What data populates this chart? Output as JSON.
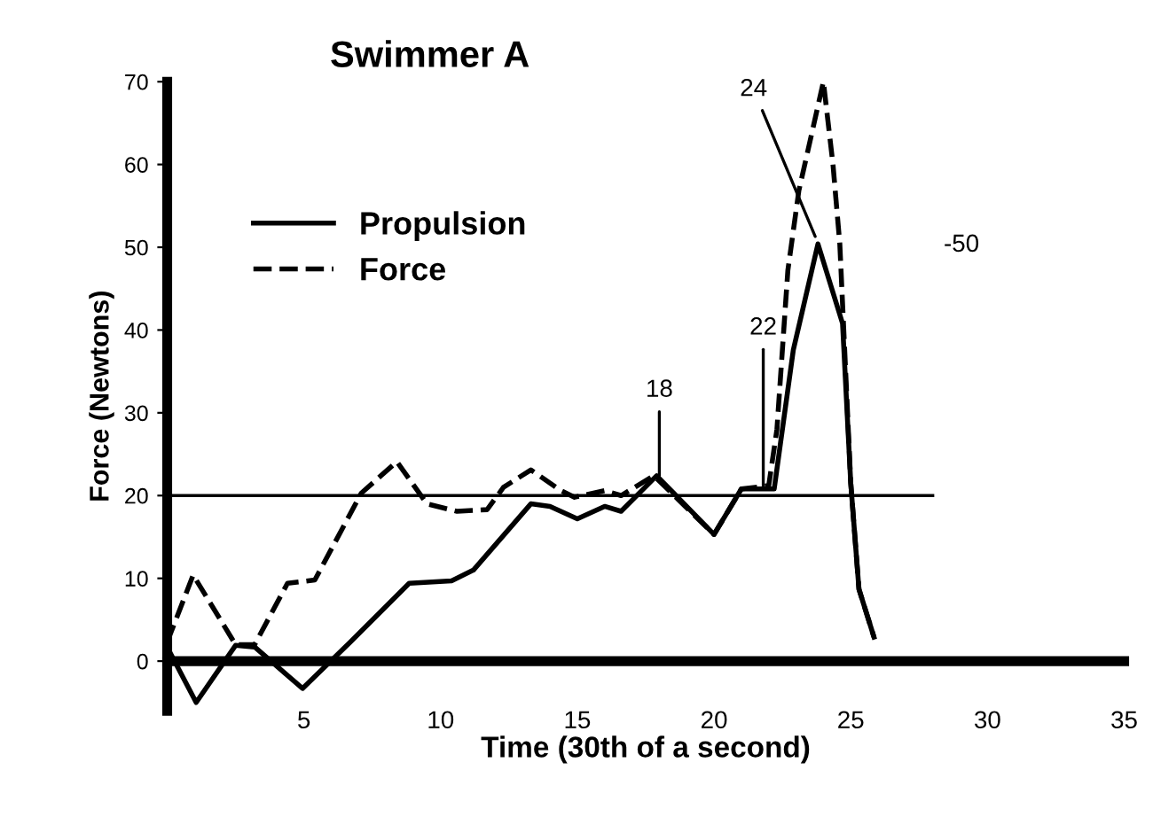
{
  "chart_data": {
    "type": "line",
    "title": "Swimmer A",
    "xlabel": "Time (30th of a second)",
    "ylabel": "Force (Newtons)",
    "xlim": [
      0,
      35
    ],
    "ylim": [
      -6,
      70
    ],
    "xticks": [
      5,
      10,
      15,
      20,
      25,
      30,
      35
    ],
    "yticks": [
      0,
      10,
      20,
      30,
      40,
      50,
      60,
      70
    ],
    "grid": false,
    "legend": "top left",
    "series": [
      {
        "name": "Propulsion",
        "color": "#000000",
        "line_style": "solid",
        "x": [
          0,
          1.06,
          2.5,
          3.2,
          4.95,
          6.7,
          8.85,
          10.4,
          11.2,
          13.3,
          14.0,
          15.0,
          16.0,
          16.6,
          17.9,
          20.0,
          21.0,
          22.2,
          22.9,
          23.8,
          24.7,
          25.0,
          25.3,
          25.85
        ],
        "values": [
          1.7,
          -5,
          1.9,
          1.7,
          -3.3,
          2.3,
          9.4,
          9.7,
          11,
          19,
          18.7,
          17.2,
          18.7,
          18.1,
          22.4,
          15.3,
          20.8,
          20.8,
          37.6,
          50.4,
          40.8,
          21.5,
          8.7,
          2.9
        ]
      },
      {
        "name": "Force",
        "color": "#000000",
        "line_style": "dashed",
        "x": [
          0,
          0.95,
          2.5,
          3.2,
          4.4,
          5.4,
          7.1,
          8.4,
          9.5,
          10.6,
          11.7,
          12.3,
          13.3,
          14.4,
          14.9,
          16.0,
          16.6,
          17.8,
          20.0,
          21.0,
          22.0,
          22.3,
          22.7,
          23.1,
          24.0,
          24.35,
          24.6,
          25.0,
          25.3,
          25.85
        ],
        "values": [
          2.3,
          10.4,
          2.0,
          2.0,
          9.4,
          9.8,
          20.3,
          24.1,
          19,
          18.1,
          18.3,
          21,
          23.1,
          20.6,
          19.8,
          20.6,
          20,
          22.4,
          15.3,
          20.8,
          21.2,
          28,
          47.2,
          56.8,
          70,
          60,
          50.4,
          21.5,
          8.7,
          2.9
        ]
      },
      {
        "color": "#000000",
        "line_style": "solid",
        "x": [
          0,
          28
        ],
        "values": [
          20,
          20
        ]
      }
    ],
    "annotations": [
      {
        "text": "18",
        "x": 18,
        "y": 22.4
      },
      {
        "text": "22",
        "x": 21.8,
        "y": 21
      },
      {
        "text": "24",
        "x": 23.7,
        "y": 51.3
      },
      "-50"
    ]
  }
}
